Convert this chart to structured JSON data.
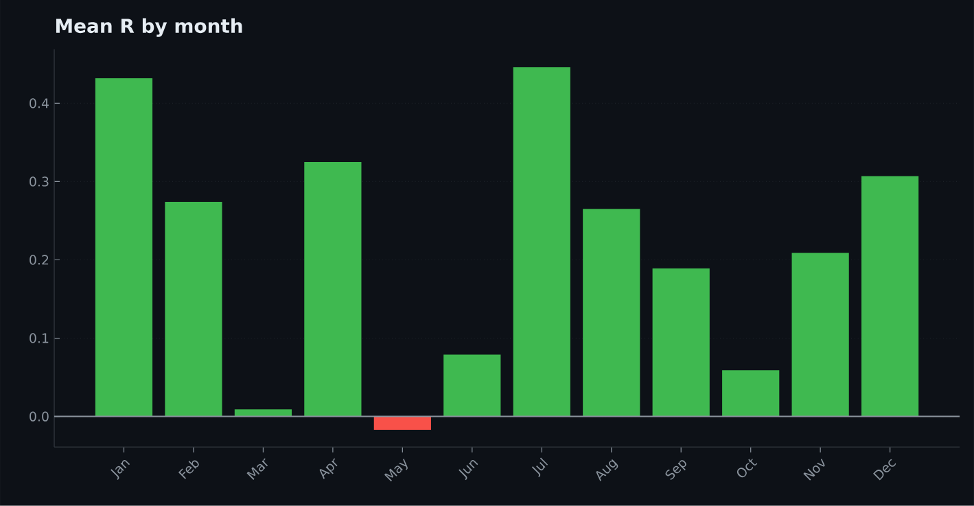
{
  "chart_data": {
    "type": "bar",
    "title": "Mean R by month",
    "categories": [
      "Jan",
      "Feb",
      "Mar",
      "Apr",
      "May",
      "Jun",
      "Jul",
      "Aug",
      "Sep",
      "Oct",
      "Nov",
      "Dec"
    ],
    "values": [
      0.432,
      0.274,
      0.009,
      0.325,
      -0.017,
      0.079,
      0.446,
      0.265,
      0.189,
      0.059,
      0.209,
      0.307
    ],
    "colors": [
      "#3fb950",
      "#3fb950",
      "#3fb950",
      "#3fb950",
      "#f85149",
      "#3fb950",
      "#3fb950",
      "#3fb950",
      "#3fb950",
      "#3fb950",
      "#3fb950",
      "#3fb950"
    ],
    "ylim": [
      -0.039,
      0.469
    ],
    "yticks": [
      {
        "value": 0,
        "label": "0.0"
      },
      0.1,
      0.2,
      0.3,
      0.4
    ],
    "grid": "y",
    "ref_lines": [
      {
        "axis": "y",
        "value": 0,
        "color": "#8b949e"
      }
    ]
  }
}
